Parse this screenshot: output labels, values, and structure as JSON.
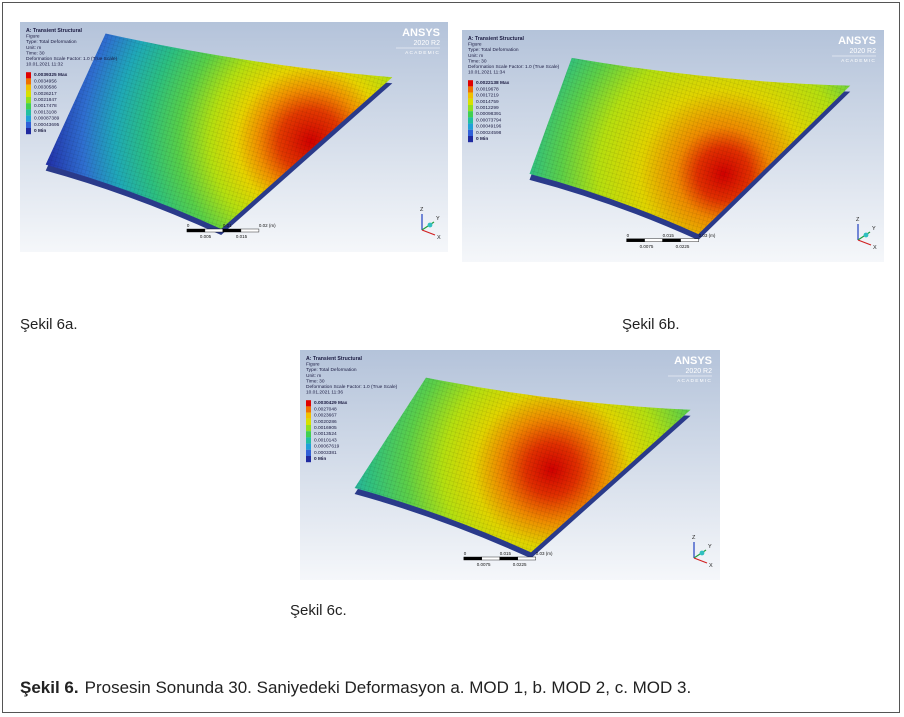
{
  "panels": [
    {
      "caption": "Şekil 6a.",
      "header": [
        "A: Transient Structural",
        "Figure",
        "Type: Total Deformation",
        "Unit: m",
        "Time: 30",
        "Deformation Scale Factor: 1.0 (True Scale)",
        "10.01.2021 11:32"
      ],
      "legend": [
        "0.0039325 Max",
        "0.0034956",
        "0.0030586",
        "0.0026217",
        "0.0021847",
        "0.0017478",
        "0.0013108",
        "0.00087389",
        "0.00043695",
        "0 Min"
      ],
      "logo": "ANSYS",
      "version": "2020 R2",
      "edition": "ACADEMIC",
      "scale_top": [
        "0",
        "0.01",
        "0.02 (m)"
      ],
      "scale_bottom": [
        "0.005",
        "0.015"
      ],
      "triad": [
        "Z",
        "Y",
        "X"
      ]
    },
    {
      "caption": "Şekil 6b.",
      "header": [
        "A: Transient Structural",
        "Figure",
        "Type: Total Deformation",
        "Unit: m",
        "Time: 30",
        "Deformation Scale Factor: 1.0 (True Scale)",
        "10.01.2021 11:34"
      ],
      "legend": [
        "0.0022138 Max",
        "0.0019678",
        "0.0017219",
        "0.0014759",
        "0.0012299",
        "0.00098391",
        "0.00073794",
        "0.00049196",
        "0.00024598",
        "0 Min"
      ],
      "logo": "ANSYS",
      "version": "2020 R2",
      "edition": "ACADEMIC",
      "scale_top": [
        "0",
        "0.015",
        "0.03 (m)"
      ],
      "scale_bottom": [
        "0.0075",
        "0.0225"
      ],
      "triad": [
        "Z",
        "Y",
        "X"
      ]
    },
    {
      "caption": "Şekil 6c.",
      "header": [
        "A: Transient Structural",
        "Figure",
        "Type: Total Deformation",
        "Unit: m",
        "Time: 30",
        "Deformation Scale Factor: 1.0 (True Scale)",
        "10.01.2021 11:36"
      ],
      "legend": [
        "0.0030429 Max",
        "0.0027048",
        "0.0023667",
        "0.0020286",
        "0.0016905",
        "0.0013524",
        "0.0010143",
        "0.00067619",
        "0.0003381",
        "0 Min"
      ],
      "logo": "ANSYS",
      "version": "2020 R2",
      "edition": "ACADEMIC",
      "scale_top": [
        "0",
        "0.015",
        "0.03 (m)"
      ],
      "scale_bottom": [
        "0.0075",
        "0.0225"
      ],
      "triad": [
        "Z",
        "Y",
        "X"
      ]
    }
  ],
  "figure_caption": {
    "label": "Şekil 6.",
    "text": "Prosesin Sonunda 30. Saniyedeki Deformasyon a. MOD 1, b. MOD 2, c. MOD 3."
  }
}
